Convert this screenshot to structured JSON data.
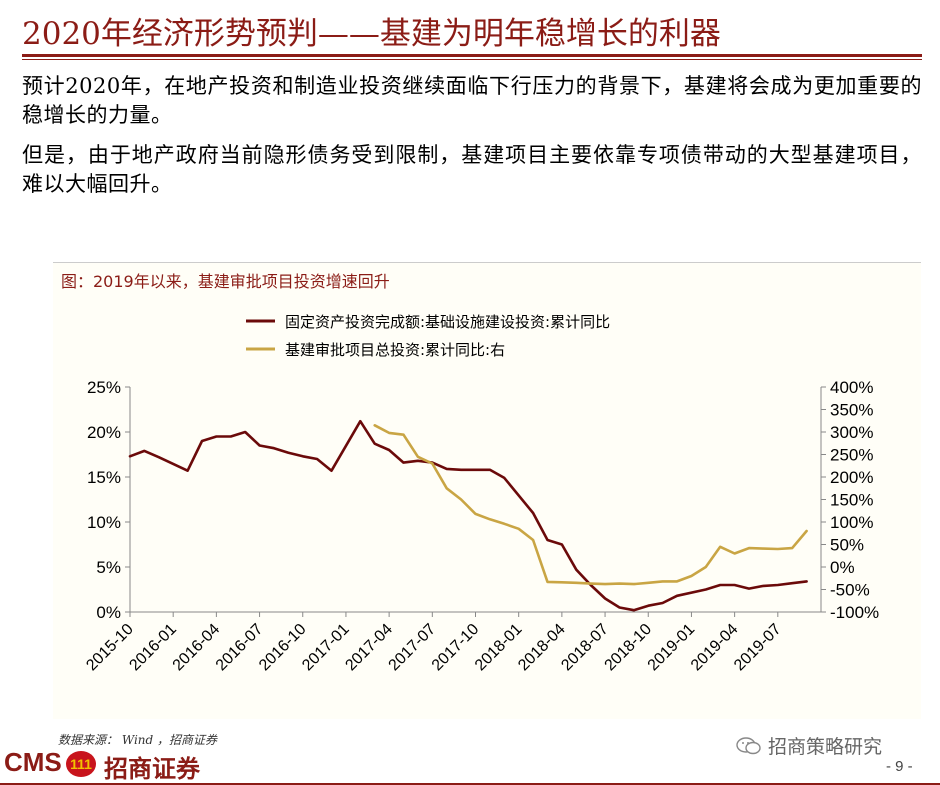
{
  "slide": {
    "title": "2020年经济形势预判——基建为明年稳增长的利器",
    "paragraphs": [
      "预计2020年，在地产投资和制造业投资继续面临下行压力的背景下，基建将会成为更加重要的稳增长的力量。",
      "但是，由于地产政府当前隐形债务受到限制，基建项目主要依靠专项债带动的大型基建项目，难以大幅回升。"
    ],
    "source": "数据来源： Wind ，招商证券",
    "wechat": "招商策略研究",
    "page": "- 9 -",
    "brand": {
      "cms": "CMS",
      "logo": "111",
      "name": "招商证券"
    }
  },
  "chart_data": {
    "type": "line",
    "title": "图：2019年以来，基建审批项目投资增速回升",
    "left_axis": {
      "ticks": [
        "0%",
        "5%",
        "10%",
        "15%",
        "20%",
        "25%"
      ],
      "ylim": [
        0,
        25
      ]
    },
    "right_axis": {
      "ticks": [
        "-100%",
        "-50%",
        "0%",
        "50%",
        "100%",
        "150%",
        "200%",
        "250%",
        "300%",
        "350%",
        "400%"
      ],
      "ylim": [
        -100,
        400
      ]
    },
    "x_ticks": [
      "2015-10",
      "2016-01",
      "2016-04",
      "2016-07",
      "2016-10",
      "2017-01",
      "2017-04",
      "2017-07",
      "2017-10",
      "2018-01",
      "2018-04",
      "2018-07",
      "2018-10",
      "2019-01",
      "2019-04",
      "2019-07"
    ],
    "series": [
      {
        "name": "固定资产投资完成额:基础设施建设投资:累计同比",
        "color": "#6b0a0a",
        "axis": "left",
        "points": [
          [
            "2015-10",
            17.3
          ],
          [
            "2015-11",
            17.9
          ],
          [
            "2015-12",
            17.2
          ],
          [
            "2016-02",
            15.7
          ],
          [
            "2016-03",
            19.0
          ],
          [
            "2016-04",
            19.5
          ],
          [
            "2016-05",
            19.5
          ],
          [
            "2016-06",
            20.0
          ],
          [
            "2016-07",
            18.5
          ],
          [
            "2016-08",
            18.2
          ],
          [
            "2016-09",
            17.7
          ],
          [
            "2016-10",
            17.3
          ],
          [
            "2016-11",
            17.0
          ],
          [
            "2016-12",
            15.7
          ],
          [
            "2017-02",
            21.2
          ],
          [
            "2017-03",
            18.7
          ],
          [
            "2017-04",
            18.0
          ],
          [
            "2017-05",
            16.6
          ],
          [
            "2017-06",
            16.8
          ],
          [
            "2017-07",
            16.6
          ],
          [
            "2017-08",
            15.9
          ],
          [
            "2017-09",
            15.8
          ],
          [
            "2017-10",
            15.8
          ],
          [
            "2017-11",
            15.8
          ],
          [
            "2017-12",
            14.9
          ],
          [
            "2018-02",
            11.0
          ],
          [
            "2018-03",
            8.0
          ],
          [
            "2018-04",
            7.5
          ],
          [
            "2018-05",
            4.7
          ],
          [
            "2018-06",
            3.0
          ],
          [
            "2018-07",
            1.5
          ],
          [
            "2018-08",
            0.5
          ],
          [
            "2018-09",
            0.2
          ],
          [
            "2018-10",
            0.7
          ],
          [
            "2018-11",
            1.0
          ],
          [
            "2018-12",
            1.8
          ],
          [
            "2019-02",
            2.5
          ],
          [
            "2019-03",
            3.0
          ],
          [
            "2019-04",
            3.0
          ],
          [
            "2019-05",
            2.6
          ],
          [
            "2019-06",
            2.9
          ],
          [
            "2019-07",
            3.0
          ],
          [
            "2019-08",
            3.2
          ],
          [
            "2019-09",
            3.4
          ]
        ]
      },
      {
        "name": "基建审批项目总投资:累计同比:右",
        "color": "#c9a544",
        "axis": "right",
        "points": [
          [
            "2017-03",
            315
          ],
          [
            "2017-04",
            298
          ],
          [
            "2017-05",
            294
          ],
          [
            "2017-06",
            245
          ],
          [
            "2017-07",
            230
          ],
          [
            "2017-08",
            175
          ],
          [
            "2017-09",
            150
          ],
          [
            "2017-10",
            118
          ],
          [
            "2017-11",
            106
          ],
          [
            "2017-12",
            96
          ],
          [
            "2018-01",
            85
          ],
          [
            "2018-02",
            60
          ],
          [
            "2018-03",
            -33
          ],
          [
            "2018-04",
            -34
          ],
          [
            "2018-05",
            -35
          ],
          [
            "2018-06",
            -37
          ],
          [
            "2018-07",
            -38
          ],
          [
            "2018-08",
            -37
          ],
          [
            "2018-09",
            -38
          ],
          [
            "2018-10",
            -35
          ],
          [
            "2018-11",
            -32
          ],
          [
            "2018-12",
            -32
          ],
          [
            "2019-01",
            -20
          ],
          [
            "2019-02",
            0
          ],
          [
            "2019-03",
            45
          ],
          [
            "2019-04",
            30
          ],
          [
            "2019-05",
            42
          ],
          [
            "2019-06",
            41
          ],
          [
            "2019-07",
            40
          ],
          [
            "2019-08",
            42
          ],
          [
            "2019-09",
            80
          ]
        ]
      }
    ],
    "legend_position": "top-left",
    "grid": false
  }
}
